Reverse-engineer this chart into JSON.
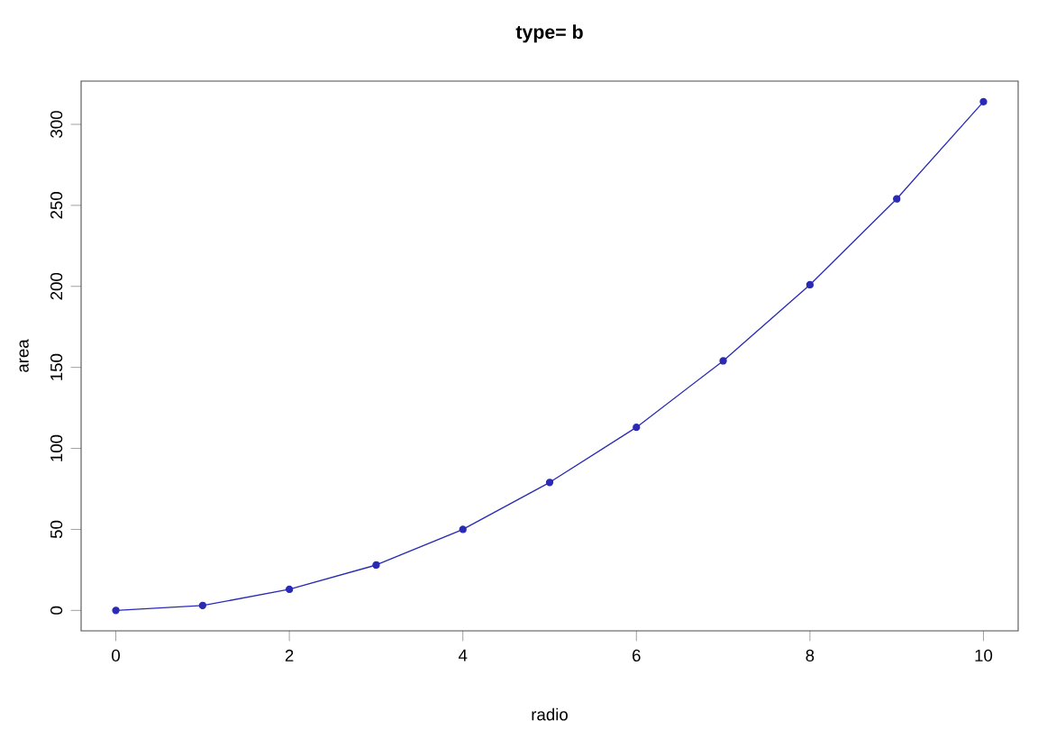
{
  "chart_data": {
    "type": "line",
    "title": "type= b",
    "xlabel": "radio",
    "ylabel": "area",
    "x": [
      0,
      1,
      2,
      3,
      4,
      5,
      6,
      7,
      8,
      9,
      10
    ],
    "series": [
      {
        "color": "#2a2ab4",
        "values": [
          0,
          3,
          13,
          28,
          50,
          79,
          113,
          154,
          201,
          254,
          314
        ]
      }
    ],
    "xlim": [
      -0.4,
      10.4
    ],
    "ylim": [
      -12.6,
      326.7
    ],
    "xticks": [
      0,
      2,
      4,
      6,
      8,
      10
    ],
    "yticks": [
      0,
      50,
      100,
      150,
      200,
      250,
      300
    ],
    "marker": "circle",
    "line_style": "solid"
  }
}
